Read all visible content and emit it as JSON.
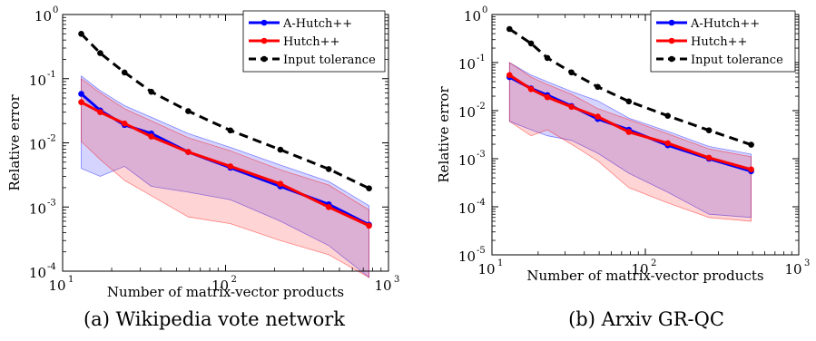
{
  "chart_data": [
    {
      "type": "line",
      "caption": "(a) Wikipedia vote network",
      "xlabel": "Number of matrix-vector products",
      "ylabel": "Relative error",
      "xscale": "log",
      "yscale": "log",
      "xlim": [
        10,
        1000
      ],
      "ylim": [
        0.0001,
        1
      ],
      "xticks": [
        {
          "value": 10,
          "base": "10",
          "exp": "1"
        },
        {
          "value": 100,
          "base": "10",
          "exp": "2"
        },
        {
          "value": 1000,
          "base": "10",
          "exp": "3"
        }
      ],
      "yticks": [
        {
          "value": 0.0001,
          "base": "10",
          "exp": "-4"
        },
        {
          "value": 0.001,
          "base": "10",
          "exp": "-3"
        },
        {
          "value": 0.01,
          "base": "10",
          "exp": "-2"
        },
        {
          "value": 0.1,
          "base": "10",
          "exp": "-1"
        },
        {
          "value": 1,
          "base": "10",
          "exp": "0"
        }
      ],
      "legend_position": "top-right",
      "grid": false,
      "x": [
        13,
        17,
        24,
        35,
        59,
        107,
        217,
        430,
        760
      ],
      "series": [
        {
          "name": "A-Hutch++",
          "color": "#0000ff",
          "style": "solid",
          "values": [
            0.058,
            0.032,
            0.019,
            0.014,
            0.0072,
            0.0041,
            0.0021,
            0.0011,
            0.00053
          ]
        },
        {
          "name": "Hutch++",
          "color": "#ff0000",
          "style": "solid",
          "values": [
            0.043,
            0.03,
            0.02,
            0.0125,
            0.0072,
            0.0043,
            0.0023,
            0.001,
            0.00051
          ]
        },
        {
          "name": "Input tolerance",
          "color": "#000000",
          "style": "dashed",
          "values": [
            0.5,
            0.25,
            0.125,
            0.0625,
            0.03125,
            0.0156,
            0.0078,
            0.0039,
            0.00195
          ]
        }
      ],
      "bands": [
        {
          "series": "A-Hutch++",
          "color": "#0000ff",
          "upper": [
            0.11,
            0.065,
            0.038,
            0.025,
            0.014,
            0.0085,
            0.0045,
            0.0025,
            0.00105
          ],
          "lower": [
            0.004,
            0.003,
            0.0043,
            0.0021,
            0.0017,
            0.0013,
            0.0006,
            0.00025,
            8e-05
          ]
        },
        {
          "series": "Hutch++",
          "color": "#ff0000",
          "upper": [
            0.1,
            0.06,
            0.034,
            0.022,
            0.012,
            0.0075,
            0.0038,
            0.0022,
            0.0009
          ],
          "lower": [
            0.0105,
            0.0055,
            0.0026,
            0.0015,
            0.0007,
            0.00055,
            0.0003,
            0.00018,
            8e-05
          ]
        }
      ]
    },
    {
      "type": "line",
      "caption": "(b) Arxiv GR-QC",
      "xlabel": "Number of matrix-vector products",
      "ylabel": "Relative error",
      "xscale": "log",
      "yscale": "log",
      "xlim": [
        10,
        1000
      ],
      "ylim": [
        1e-05,
        1
      ],
      "xticks": [
        {
          "value": 10,
          "base": "10",
          "exp": "1"
        },
        {
          "value": 100,
          "base": "10",
          "exp": "2"
        },
        {
          "value": 1000,
          "base": "10",
          "exp": "3"
        }
      ],
      "yticks": [
        {
          "value": 1e-05,
          "base": "10",
          "exp": "-5"
        },
        {
          "value": 0.0001,
          "base": "10",
          "exp": "-4"
        },
        {
          "value": 0.001,
          "base": "10",
          "exp": "-3"
        },
        {
          "value": 0.01,
          "base": "10",
          "exp": "-2"
        },
        {
          "value": 0.1,
          "base": "10",
          "exp": "-1"
        },
        {
          "value": 1,
          "base": "10",
          "exp": "0"
        }
      ],
      "legend_position": "top-right",
      "grid": false,
      "x": [
        13,
        18,
        23,
        33,
        49,
        78,
        140,
        260,
        490
      ],
      "series": [
        {
          "name": "A-Hutch++",
          "color": "#0000ff",
          "style": "solid",
          "values": [
            0.05,
            0.029,
            0.021,
            0.0125,
            0.0067,
            0.004,
            0.0019,
            0.001,
            0.00055
          ]
        },
        {
          "name": "Hutch++",
          "color": "#ff0000",
          "style": "solid",
          "values": [
            0.055,
            0.028,
            0.019,
            0.012,
            0.0075,
            0.0036,
            0.0021,
            0.00105,
            0.0006
          ]
        },
        {
          "name": "Input tolerance",
          "color": "#000000",
          "style": "dashed",
          "values": [
            0.5,
            0.25,
            0.125,
            0.0625,
            0.03125,
            0.0156,
            0.0078,
            0.0039,
            0.00195
          ]
        }
      ],
      "bands": [
        {
          "series": "A-Hutch++",
          "color": "#0000ff",
          "upper": [
            0.1,
            0.055,
            0.04,
            0.025,
            0.016,
            0.007,
            0.0037,
            0.0018,
            0.00125
          ],
          "lower": [
            0.006,
            0.004,
            0.003,
            0.0024,
            0.0013,
            0.0005,
            0.0002,
            7e-05,
            6e-05
          ]
        },
        {
          "series": "Hutch++",
          "color": "#ff0000",
          "upper": [
            0.1,
            0.05,
            0.035,
            0.022,
            0.011,
            0.0065,
            0.0033,
            0.0016,
            0.0011
          ],
          "lower": [
            0.006,
            0.003,
            0.004,
            0.002,
            0.0009,
            0.00025,
            0.00012,
            6e-05,
            5e-05
          ]
        }
      ]
    }
  ]
}
